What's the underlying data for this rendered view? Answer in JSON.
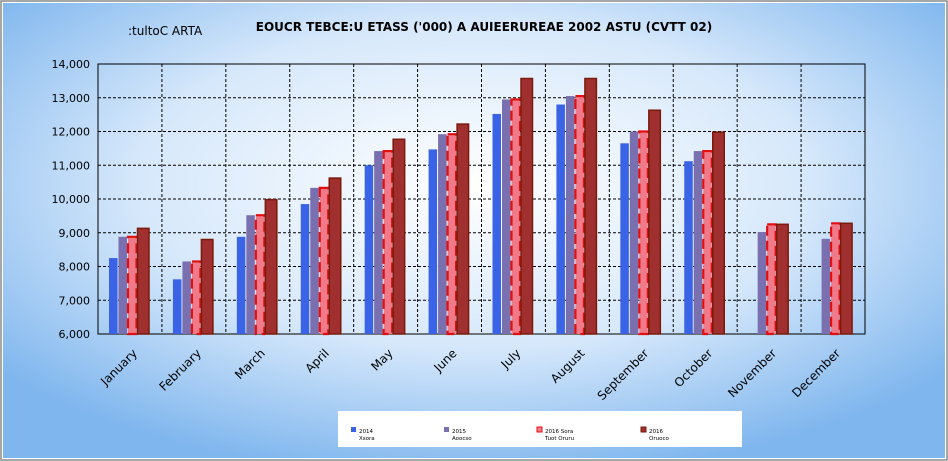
{
  "chart_data": {
    "type": "bar",
    "title": "EOUCR TEBCE:U ETASS ('000) A AUIEERUREAE 2002 ASTU (CVTT 02)",
    "source_note": ":tultoC ARTA",
    "categories": [
      "January",
      "February",
      "March",
      "April",
      "May",
      "June",
      "July",
      "August",
      "September",
      "October",
      "November",
      "December"
    ],
    "ylim": [
      6000,
      14000
    ],
    "yticks": [
      "6,000",
      "7,000",
      "8,000",
      "9,000",
      "10,000",
      "11,000",
      "12,000",
      "13,000",
      "14,000"
    ],
    "grid": true,
    "legend_position": "bottom",
    "series": [
      {
        "name": "2014",
        "sub": "Xsora",
        "color": "#3b63e6",
        "values": [
          8250,
          7620,
          8880,
          9850,
          11000,
          11470,
          12520,
          12800,
          11650,
          11120,
          null,
          null
        ]
      },
      {
        "name": "2015",
        "sub": "Aoocso",
        "color": "#7a70b0",
        "values": [
          8880,
          8150,
          9520,
          10330,
          11420,
          11920,
          12950,
          13050,
          12000,
          11420,
          9020,
          8820
        ]
      },
      {
        "name": "2016 Sora",
        "sub": "Tuot Oruru",
        "color": "#f07a8a",
        "values": [
          8880,
          8150,
          9520,
          10330,
          11420,
          11920,
          12950,
          13050,
          12000,
          11420,
          9250,
          9280
        ]
      },
      {
        "name": "2016",
        "sub": "Oruoco",
        "color": "#a03030",
        "values": [
          9130,
          8800,
          9980,
          10620,
          11770,
          12220,
          13570,
          13570,
          12630,
          11980,
          9250,
          9280
        ]
      }
    ]
  }
}
